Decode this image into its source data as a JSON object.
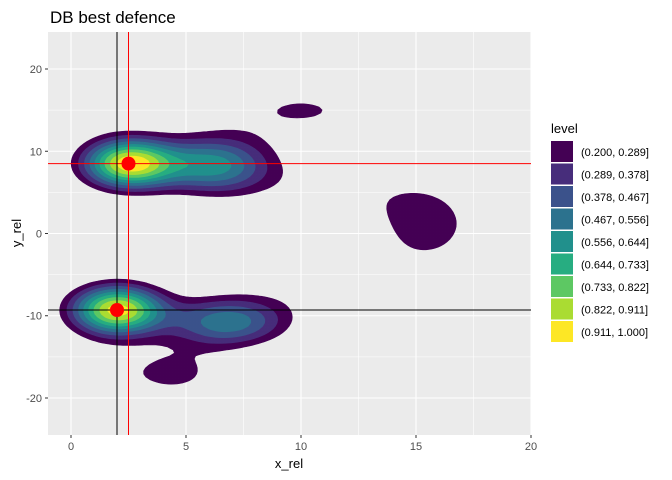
{
  "chart_data": {
    "type": "contour-density",
    "title": "DB best defence",
    "xlabel": "x_rel",
    "ylabel": "y_rel",
    "xlim": [
      -1,
      20
    ],
    "ylim": [
      -24.5,
      24.5
    ],
    "x_ticks": [
      0,
      5,
      10,
      15,
      20
    ],
    "y_ticks": [
      -20,
      -10,
      0,
      10,
      20
    ],
    "grid": true,
    "legend": {
      "title": "level",
      "position": "right",
      "entries": [
        {
          "label": "(0.200, 0.289]",
          "color": "#440154"
        },
        {
          "label": "(0.289, 0.378]",
          "color": "#472d7b"
        },
        {
          "label": "(0.378, 0.467]",
          "color": "#3b528b"
        },
        {
          "label": "(0.467, 0.556]",
          "color": "#2c728e"
        },
        {
          "label": "(0.556, 0.644]",
          "color": "#21908c"
        },
        {
          "label": "(0.644, 0.733]",
          "color": "#27ad81"
        },
        {
          "label": "(0.733, 0.822]",
          "color": "#5dc863"
        },
        {
          "label": "(0.822, 0.911]",
          "color": "#aadc32"
        },
        {
          "label": "(0.911, 1.000]",
          "color": "#fde725"
        }
      ]
    },
    "points": [
      {
        "x": 2.5,
        "y": 8.5,
        "color": "#ff0000"
      },
      {
        "x": 2.0,
        "y": -9.3,
        "color": "#ff0000"
      }
    ],
    "reference_lines": [
      {
        "orientation": "vertical",
        "value": 2.5,
        "color": "#ff0000"
      },
      {
        "orientation": "horizontal",
        "value": 8.5,
        "color": "#ff0000"
      },
      {
        "orientation": "vertical",
        "value": 2.0,
        "color": "#000000"
      },
      {
        "orientation": "horizontal",
        "value": -9.3,
        "color": "#000000"
      }
    ],
    "hotspots": {
      "upper_peak": {
        "x": 2.5,
        "y": 8.5
      },
      "lower_peak": {
        "x": 2.0,
        "y": -9.3
      }
    }
  }
}
